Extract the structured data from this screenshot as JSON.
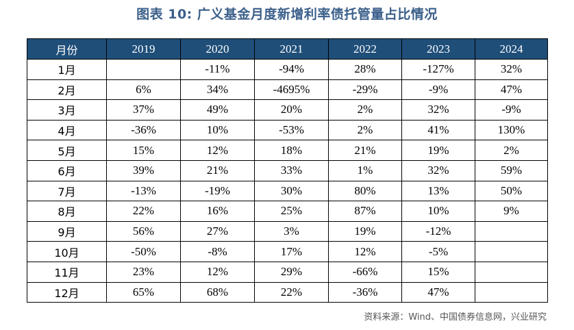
{
  "title": "图表 10: 广义基金月度新增利率债托管量占比情况",
  "table": {
    "header": [
      "月份",
      "2019",
      "2020",
      "2021",
      "2022",
      "2023",
      "2024"
    ],
    "rows": [
      [
        "1月",
        "",
        "-11%",
        "-94%",
        "28%",
        "-127%",
        "32%"
      ],
      [
        "2月",
        "6%",
        "34%",
        "-4695%",
        "-29%",
        "-9%",
        "47%"
      ],
      [
        "3月",
        "37%",
        "49%",
        "20%",
        "2%",
        "32%",
        "-9%"
      ],
      [
        "4月",
        "-36%",
        "10%",
        "-53%",
        "2%",
        "41%",
        "130%"
      ],
      [
        "5月",
        "15%",
        "12%",
        "18%",
        "21%",
        "19%",
        "2%"
      ],
      [
        "6月",
        "39%",
        "21%",
        "33%",
        "1%",
        "32%",
        "59%"
      ],
      [
        "7月",
        "-13%",
        "-19%",
        "30%",
        "80%",
        "13%",
        "50%"
      ],
      [
        "8月",
        "22%",
        "16%",
        "25%",
        "87%",
        "10%",
        "9%"
      ],
      [
        "9月",
        "56%",
        "27%",
        "3%",
        "19%",
        "-12%",
        ""
      ],
      [
        "10月",
        "-50%",
        "-8%",
        "17%",
        "12%",
        "-5%",
        ""
      ],
      [
        "11月",
        "23%",
        "12%",
        "29%",
        "-66%",
        "15%",
        ""
      ],
      [
        "12月",
        "65%",
        "68%",
        "22%",
        "-36%",
        "47%",
        ""
      ]
    ]
  },
  "source": "资料来源：Wind、中国债券信息网，兴业研究",
  "colors": {
    "header_bg": "#1f4e79",
    "title": "#3b5f8a"
  }
}
